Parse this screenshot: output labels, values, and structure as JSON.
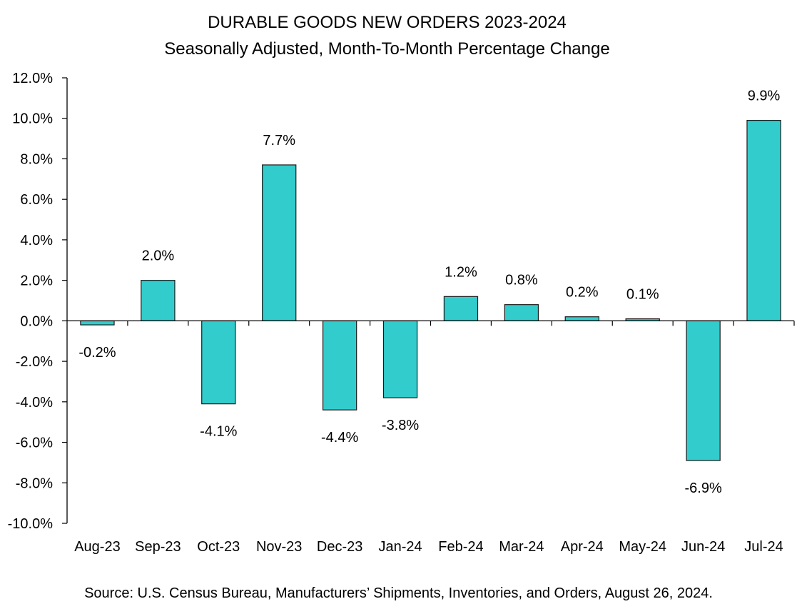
{
  "chart_data": {
    "type": "bar",
    "title": "DURABLE GOODS NEW ORDERS 2023-2024",
    "subtitle": "Seasonally Adjusted,  Month-To-Month Percentage Change",
    "xlabel": "",
    "ylabel": "",
    "categories": [
      "Aug-23",
      "Sep-23",
      "Oct-23",
      "Nov-23",
      "Dec-23",
      "Jan-24",
      "Feb-24",
      "Mar-24",
      "Apr-24",
      "May-24",
      "Jun-24",
      "Jul-24"
    ],
    "series": [
      {
        "name": "Month-to-month % change",
        "values": [
          -0.2,
          2.0,
          -4.1,
          7.7,
          -4.4,
          -3.8,
          1.2,
          0.8,
          0.2,
          0.1,
          -6.9,
          9.9
        ],
        "labels": [
          "-0.2%",
          "2.0%",
          "-4.1%",
          "7.7%",
          "-4.4%",
          "-3.8%",
          "1.2%",
          "0.8%",
          "0.2%",
          "0.1%",
          "-6.9%",
          "9.9%"
        ],
        "color": "#33CCCC"
      }
    ],
    "ylim": [
      -10,
      12
    ],
    "yticks": [
      12,
      10,
      8,
      6,
      4,
      2,
      0,
      -2,
      -4,
      -6,
      -8,
      -10
    ],
    "ytick_labels": [
      "12.0%",
      "10.0%",
      "8.0%",
      "6.0%",
      "4.0%",
      "2.0%",
      "0.0%",
      "-2.0%",
      "-4.0%",
      "-6.0%",
      "-8.0%",
      "-10.0%"
    ],
    "grid": false,
    "legend": "none",
    "source": "Source: U.S. Census Bureau, Manufacturers’ Shipments, Inventories, and Orders, August 26, 2024."
  }
}
